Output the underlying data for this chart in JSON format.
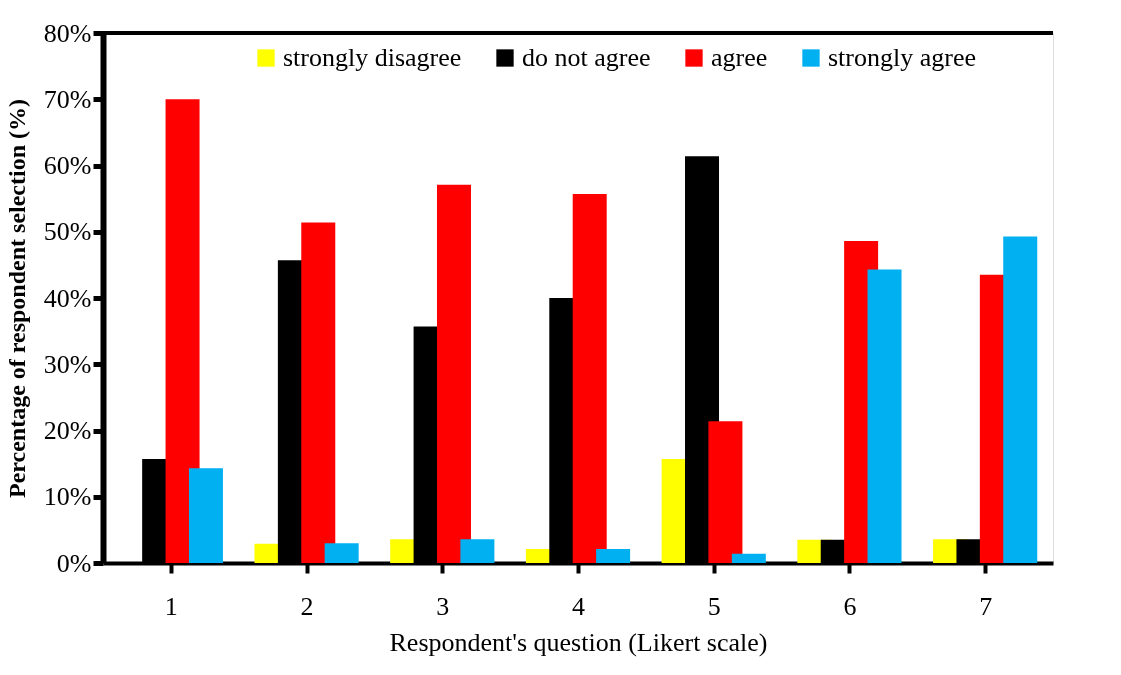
{
  "chart_data": {
    "type": "bar",
    "xlabel": "Respondent's question (Likert scale)",
    "ylabel": "Percentage of respondent selection (%)",
    "categories": [
      "1",
      "2",
      "3",
      "4",
      "5",
      "6",
      "7"
    ],
    "series": [
      {
        "name": "strongly disagree",
        "color": "#ffff00",
        "values": [
          0,
          2.9,
          3.6,
          2.1,
          15.7,
          3.5,
          3.6
        ]
      },
      {
        "name": "do not agree",
        "color": "#000000",
        "values": [
          15.7,
          45.7,
          35.7,
          40.0,
          61.4,
          3.5,
          3.6
        ]
      },
      {
        "name": "agree",
        "color": "#ff0000",
        "values": [
          70.0,
          51.4,
          57.1,
          55.7,
          21.4,
          48.6,
          43.5
        ]
      },
      {
        "name": "strongly agree",
        "color": "#00b0f0",
        "values": [
          14.3,
          3.0,
          3.6,
          2.1,
          1.4,
          44.3,
          49.3
        ]
      }
    ],
    "ylim": [
      0,
      80
    ],
    "yticks": [
      {
        "value": 0,
        "label": "0%"
      },
      {
        "value": 10,
        "label": "10%"
      },
      {
        "value": 20,
        "label": "20%"
      },
      {
        "value": 30,
        "label": "30%"
      },
      {
        "value": 40,
        "label": "40%"
      },
      {
        "value": 50,
        "label": "50%"
      },
      {
        "value": 60,
        "label": "60%"
      },
      {
        "value": 70,
        "label": "70%"
      },
      {
        "value": 80,
        "label": "80%"
      }
    ],
    "grid": false,
    "legend": "top"
  }
}
